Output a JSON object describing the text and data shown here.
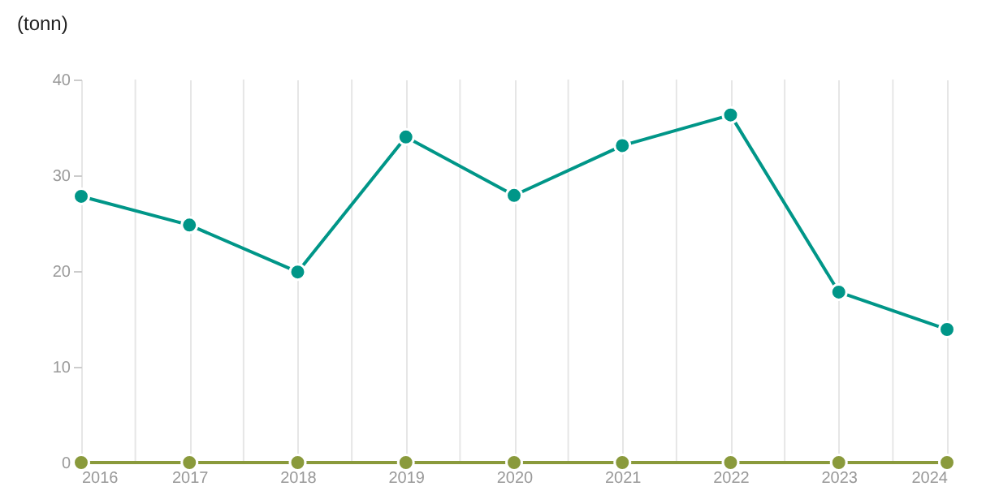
{
  "chart_data": {
    "type": "line",
    "ylabel": "(tonn)",
    "x": [
      2016,
      2017,
      2018,
      2019,
      2020,
      2021,
      2022,
      2023,
      2024
    ],
    "series": [
      {
        "color": "#009688",
        "values": [
          27.8,
          24.8,
          19.9,
          34,
          27.9,
          33.1,
          36.3,
          17.8,
          13.9
        ]
      },
      {
        "color": "#8a9a3c",
        "values": [
          0,
          0,
          0,
          0,
          0,
          0,
          0,
          0,
          0
        ]
      }
    ],
    "xlim": [
      2016,
      2024
    ],
    "xticks": [
      2016,
      {
        "value": 2016.5,
        "label": null
      },
      2017,
      {
        "value": 2017.5,
        "label": null
      },
      2018,
      {
        "value": 2018.5,
        "label": null
      },
      2019,
      {
        "value": 2019.5,
        "label": null
      },
      2020,
      {
        "value": 2020.5,
        "label": null
      },
      2021,
      {
        "value": 2021.5,
        "label": null
      },
      2022,
      {
        "value": 2022.5,
        "label": null
      },
      2023,
      {
        "value": 2023.5,
        "label": null
      },
      2024
    ],
    "ylim": [
      0,
      40
    ],
    "yticks": [
      0,
      10,
      20,
      30,
      40
    ],
    "grid": "x",
    "marker": "circle",
    "line_style": "solid"
  }
}
